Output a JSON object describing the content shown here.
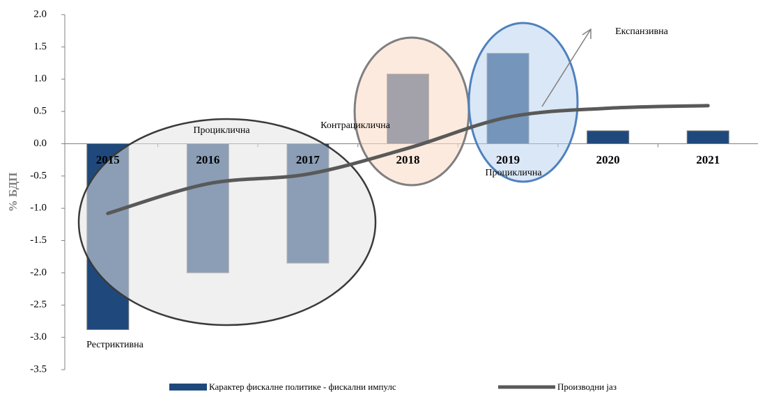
{
  "chart_data": {
    "type": "bar_line",
    "y_label": "% БДП",
    "categories": [
      "2015",
      "2016",
      "2017",
      "2018",
      "2019",
      "2020",
      "2021"
    ],
    "series": [
      {
        "name": "Карактер фискалне политике - фискални импулс",
        "type": "bar",
        "color": "#1f497d",
        "values": [
          -2.88,
          -2.0,
          -1.85,
          1.08,
          1.4,
          0.2,
          0.2
        ]
      },
      {
        "name": "Производни јаз",
        "type": "line",
        "color": "#595959",
        "values": [
          -1.08,
          -0.62,
          -0.47,
          -0.07,
          0.41,
          0.55,
          0.59
        ]
      }
    ],
    "ylim": [
      -3.5,
      2.0
    ],
    "yticks": [
      {
        "value": 2,
        "label": "2.0"
      },
      1.5,
      {
        "value": 1,
        "label": "1.0"
      },
      0.5,
      {
        "value": 0,
        "label": "0.0"
      },
      -0.5,
      {
        "value": -1,
        "label": "-1.0"
      },
      -1.5,
      {
        "value": -2,
        "label": "-2.0"
      },
      -2.5,
      {
        "value": -3,
        "label": "-3.0"
      },
      -3.5
    ],
    "annotations": [
      "Проциклична",
      "Контрациклична",
      "Проциклична",
      "Рестриктивна",
      "Експанзивна"
    ],
    "grid": false
  }
}
